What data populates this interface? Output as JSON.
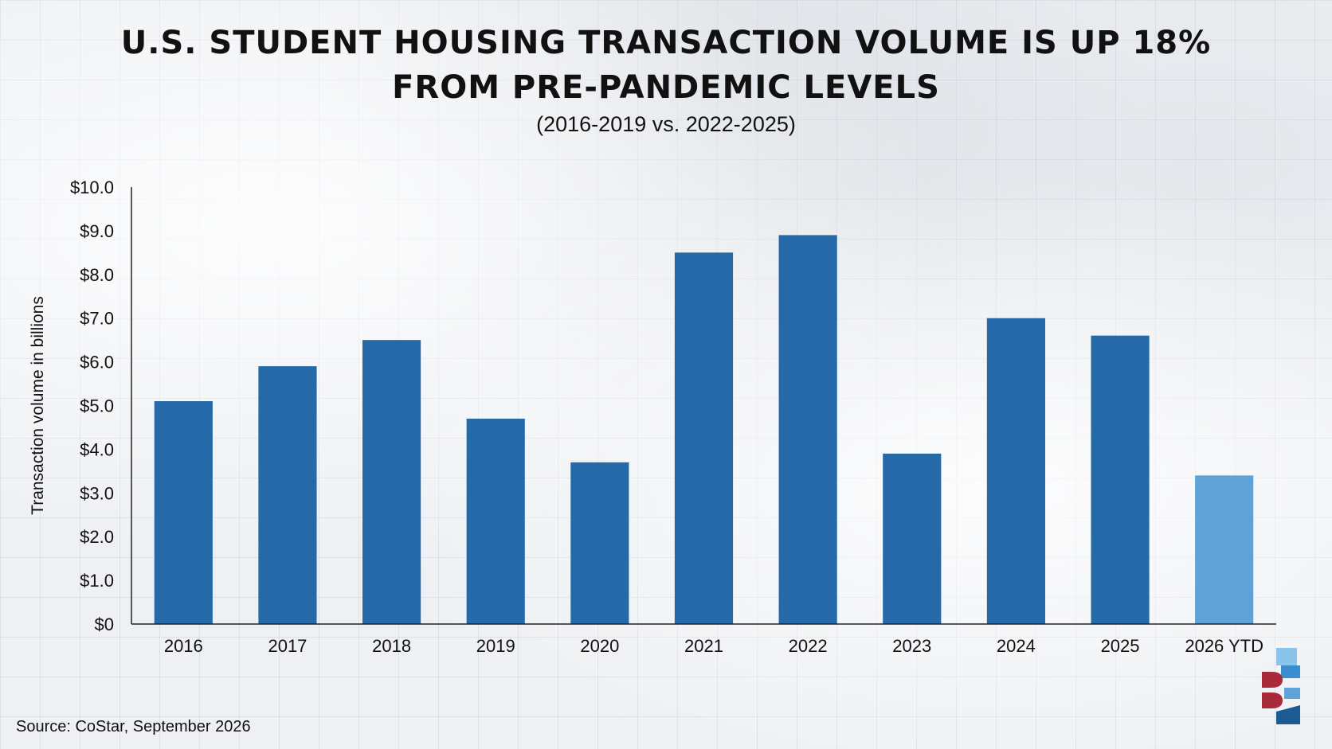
{
  "title_lines": [
    "U.S. STUDENT HOUSING TRANSACTION VOLUME IS UP 18%",
    "FROM PRE-PANDEMIC LEVELS"
  ],
  "subtitle": "(2016-2019 vs. 2022-2025)",
  "source": "Source: CoStar, September 2026",
  "logo_icon": "be-logo-icon",
  "colors": {
    "bar": "#2569a8",
    "bar_ytd": "#5ea2d8",
    "axis": "#222222",
    "text": "#111111",
    "logo_blue_light": "#8ac4ec",
    "logo_red": "#a92a3a",
    "logo_blue_dark": "#1d5b94"
  },
  "chart_data": {
    "type": "bar",
    "title": "U.S. STUDENT HOUSING TRANSACTION VOLUME IS UP 18% FROM PRE-PANDEMIC LEVELS",
    "subtitle": "(2016-2019 vs. 2022-2025)",
    "xlabel": "",
    "ylabel": "Transaction volume in billions",
    "ylim": [
      0,
      10
    ],
    "yticks": [
      0,
      1,
      2,
      3,
      4,
      5,
      6,
      7,
      8,
      9,
      10
    ],
    "ytick_labels": [
      "$0",
      "$1.0",
      "$2.0",
      "$3.0",
      "$4.0",
      "$5.0",
      "$6.0",
      "$7.0",
      "$8.0",
      "$9.0",
      "$10.0"
    ],
    "categories": [
      "2016",
      "2017",
      "2018",
      "2019",
      "2020",
      "2021",
      "2022",
      "2023",
      "2024",
      "2025",
      "2026 YTD"
    ],
    "values": [
      5.1,
      5.9,
      6.5,
      4.7,
      3.7,
      8.5,
      8.9,
      3.9,
      7.0,
      6.6,
      3.4
    ],
    "highlight": [
      "2026 YTD"
    ],
    "grid": false,
    "legend": "none"
  }
}
